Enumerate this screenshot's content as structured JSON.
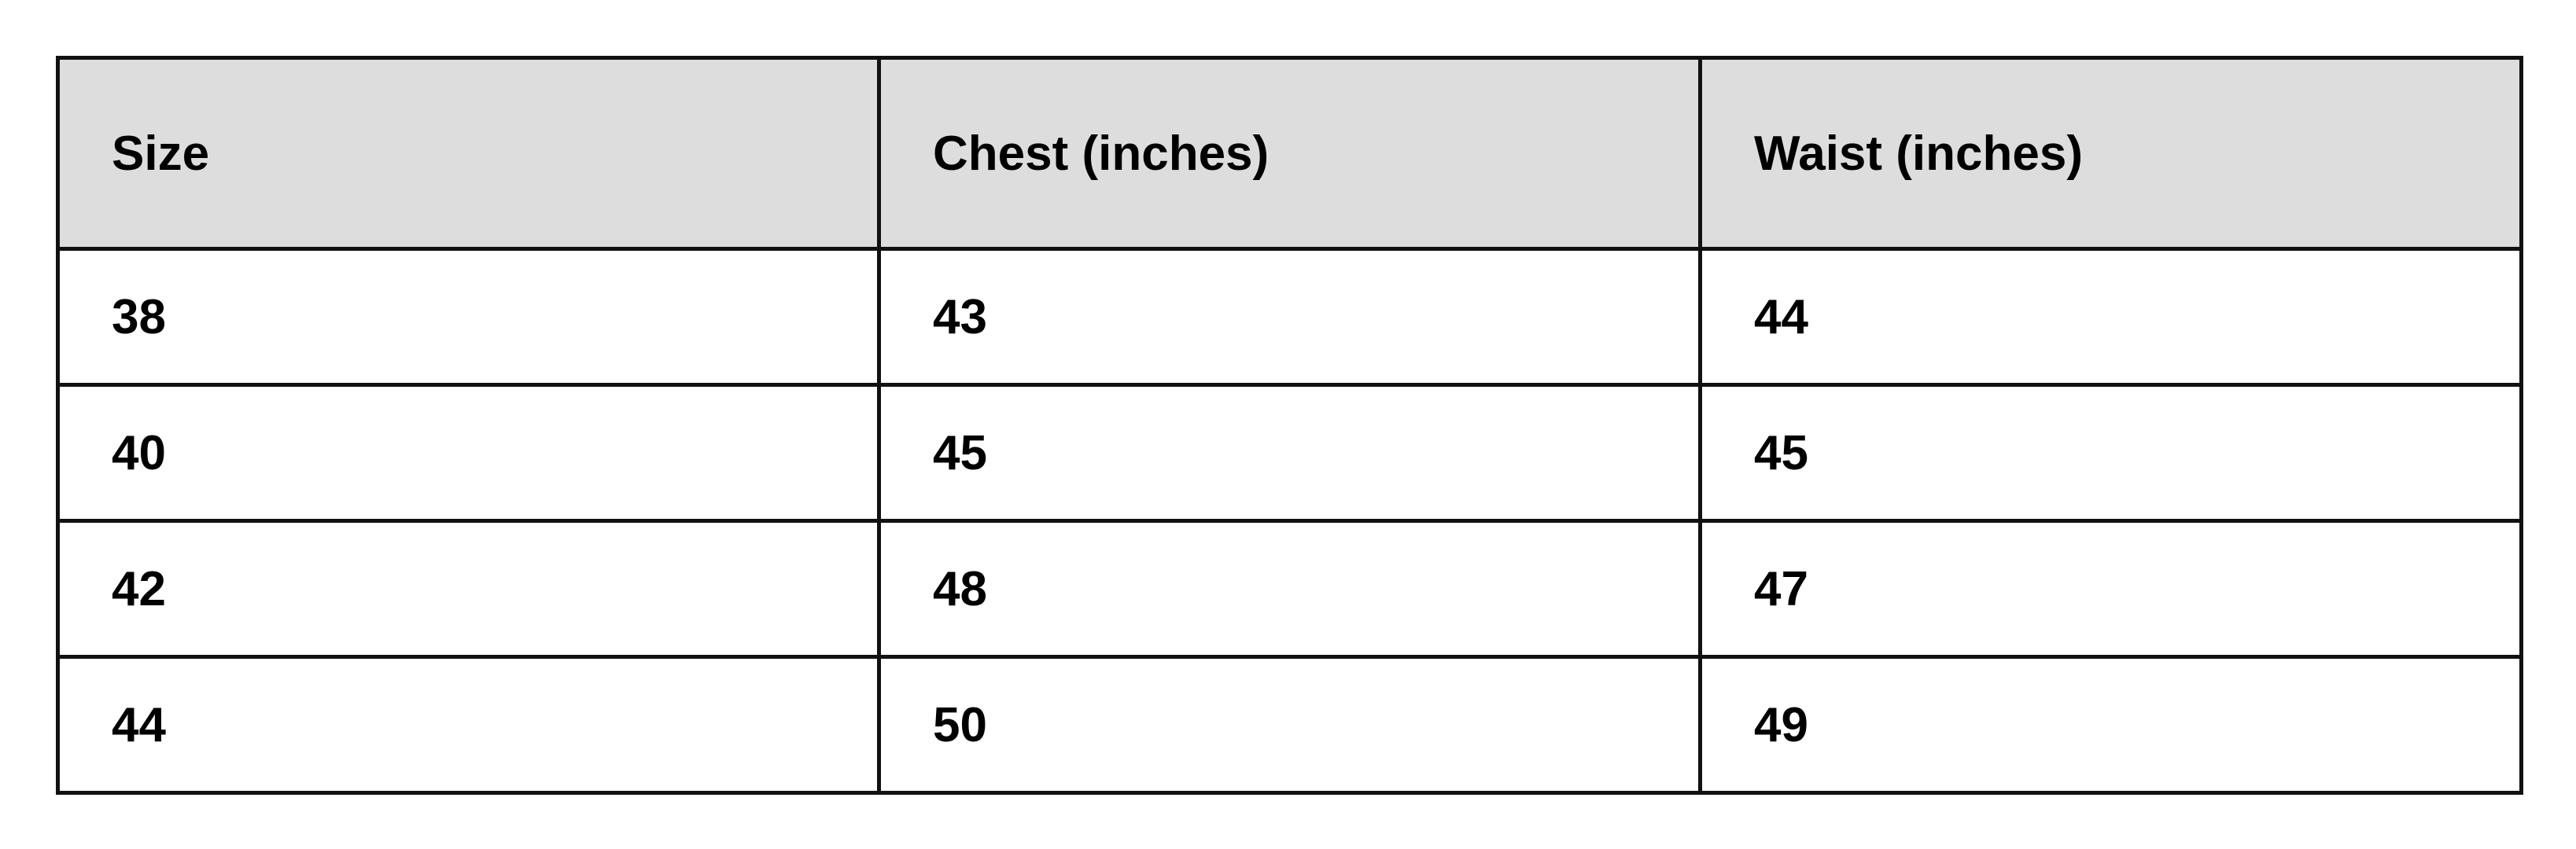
{
  "table": {
    "headers": [
      "Size",
      "Chest (inches)",
      "Waist (inches)"
    ],
    "rows": [
      [
        "38",
        "43",
        "44"
      ],
      [
        "40",
        "45",
        "45"
      ],
      [
        "42",
        "48",
        "47"
      ],
      [
        "44",
        "50",
        "49"
      ]
    ]
  },
  "colors": {
    "header_bg": "#dddddd",
    "border": "#111111",
    "text": "#000000"
  }
}
